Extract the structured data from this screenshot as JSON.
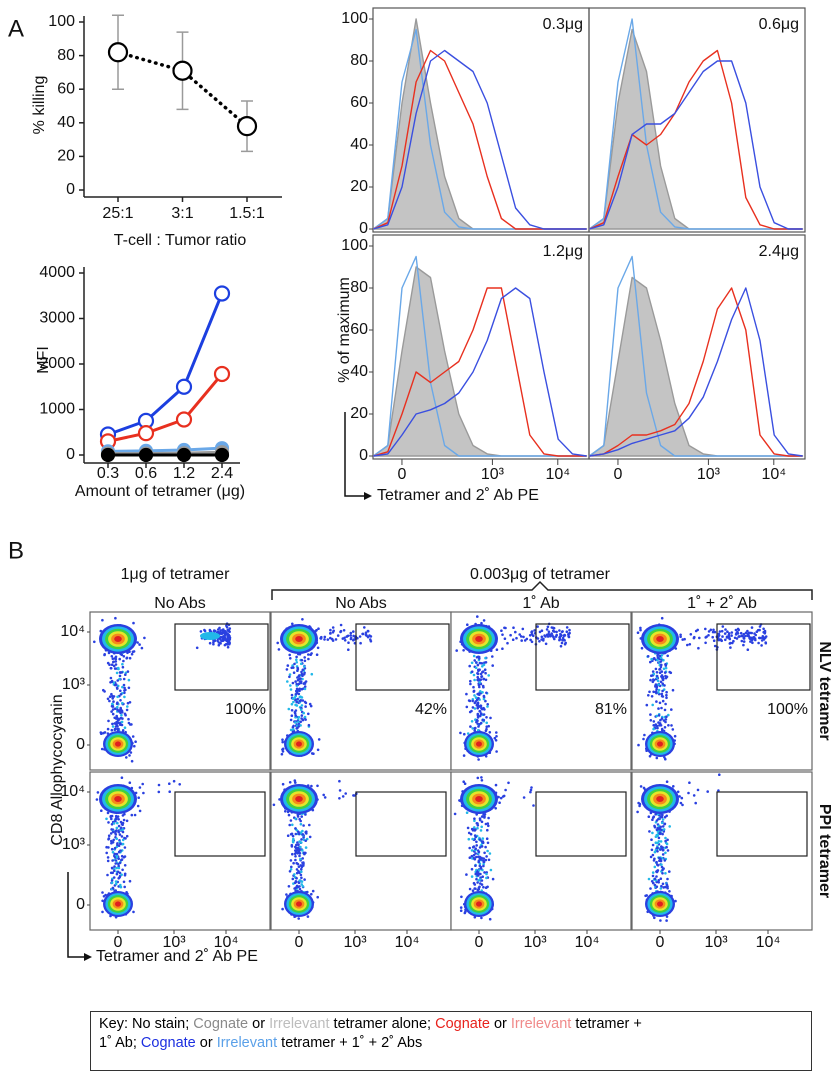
{
  "panel_labels": [
    "A",
    "B"
  ],
  "chart_data": [
    {
      "type": "line",
      "ylabel": "% killing",
      "xlabel": "T-cell : Tumor ratio",
      "categories": [
        "25:1",
        "3:1",
        "1.5:1"
      ],
      "values": [
        82,
        71,
        38
      ],
      "errors": [
        22,
        23,
        15
      ],
      "color": "#000000",
      "error_color": "#9a9a9a",
      "line_style": "dotted",
      "ylim": [
        0,
        100
      ],
      "yticks": [
        0,
        20,
        40,
        60,
        80,
        100
      ]
    },
    {
      "type": "line",
      "ylabel": "MFI",
      "xlabel": "Amount of tetramer (μg)",
      "categories": [
        "0.3",
        "0.6",
        "1.2",
        "2.4"
      ],
      "series": [
        {
          "color": "#1c3fe0",
          "values": [
            450,
            750,
            1500,
            3550
          ]
        },
        {
          "color": "#e8301f",
          "values": [
            300,
            480,
            780,
            1780
          ]
        },
        {
          "color": "#6aa8e8",
          "values": [
            80,
            90,
            110,
            150
          ],
          "filled": true
        },
        {
          "color": "#999999",
          "values": [
            30,
            30,
            40,
            60
          ],
          "filled": true
        },
        {
          "color": "#000000",
          "values": [
            0,
            0,
            0,
            0
          ],
          "filled": true
        }
      ],
      "ylim": [
        0,
        4000
      ],
      "yticks": [
        0,
        1000,
        2000,
        3000,
        4000
      ]
    },
    {
      "type": "density",
      "title": "0.3μg",
      "ylabel": "% of maximum",
      "xscale": "asinh",
      "x": [
        -98,
        -43,
        0,
        43,
        98,
        177,
        301,
        502,
        831,
        1371,
        2265,
        3733,
        6159,
        10154,
        16740,
        27600
      ],
      "xlim": [
        -100,
        30000
      ],
      "ylim": [
        0,
        100
      ],
      "yticks": [
        0,
        20,
        40,
        60,
        80,
        100
      ],
      "series": [
        {
          "color": "#9a9a9a",
          "fill": true,
          "values": [
            0,
            5,
            60,
            100,
            60,
            25,
            5,
            0,
            0,
            0,
            0,
            0,
            0,
            0,
            0,
            0
          ]
        },
        {
          "color": "#6aa8e8",
          "values": [
            0,
            5,
            70,
            95,
            40,
            8,
            1,
            0,
            0,
            0,
            0,
            0,
            0,
            0,
            0,
            0
          ]
        },
        {
          "color": "#e8301f",
          "values": [
            0,
            3,
            30,
            70,
            85,
            80,
            65,
            50,
            25,
            5,
            0,
            0,
            0,
            0,
            0,
            0
          ]
        },
        {
          "color": "#3a4fe0",
          "values": [
            0,
            2,
            20,
            55,
            80,
            85,
            80,
            75,
            60,
            35,
            10,
            2,
            0,
            0,
            0,
            0
          ]
        }
      ]
    },
    {
      "type": "density",
      "title": "0.6μg",
      "xscale": "asinh",
      "x": [
        -98,
        -43,
        0,
        43,
        98,
        177,
        301,
        502,
        831,
        1371,
        2265,
        3733,
        6159,
        10154,
        16740,
        27600
      ],
      "xlim": [
        -100,
        30000
      ],
      "ylim": [
        0,
        100
      ],
      "series": [
        {
          "color": "#9a9a9a",
          "fill": true,
          "values": [
            0,
            5,
            60,
            95,
            75,
            30,
            5,
            0,
            0,
            0,
            0,
            0,
            0,
            0,
            0,
            0
          ]
        },
        {
          "color": "#6aa8e8",
          "values": [
            0,
            5,
            70,
            100,
            40,
            8,
            1,
            0,
            0,
            0,
            0,
            0,
            0,
            0,
            0,
            0
          ]
        },
        {
          "color": "#e8301f",
          "values": [
            0,
            3,
            25,
            45,
            40,
            45,
            55,
            70,
            80,
            85,
            60,
            15,
            2,
            0,
            0,
            0
          ]
        },
        {
          "color": "#3a4fe0",
          "values": [
            0,
            2,
            20,
            45,
            50,
            50,
            55,
            65,
            75,
            80,
            80,
            60,
            20,
            3,
            0,
            0
          ]
        }
      ]
    },
    {
      "type": "density",
      "title": "1.2μg",
      "xlabel": "Tetramer and 2˚ Ab PE",
      "xscale": "asinh",
      "x": [
        -98,
        -43,
        0,
        43,
        98,
        177,
        301,
        502,
        831,
        1371,
        2265,
        3733,
        6159,
        10154,
        16740,
        27600
      ],
      "xlim": [
        -100,
        30000
      ],
      "ylim": [
        0,
        100
      ],
      "yticks": [
        0,
        20,
        40,
        60,
        80,
        100
      ],
      "xticks": [
        {
          "value": 0,
          "label": "0"
        },
        {
          "value": 1000,
          "label": "10³"
        },
        {
          "value": 10000,
          "label": "10⁴"
        }
      ],
      "series": [
        {
          "color": "#9a9a9a",
          "fill": true,
          "values": [
            0,
            5,
            50,
            90,
            85,
            50,
            20,
            5,
            1,
            0,
            0,
            0,
            0,
            0,
            0,
            0
          ]
        },
        {
          "color": "#6aa8e8",
          "values": [
            0,
            5,
            80,
            95,
            35,
            5,
            0,
            0,
            0,
            0,
            0,
            0,
            0,
            0,
            0,
            0
          ]
        },
        {
          "color": "#e8301f",
          "values": [
            0,
            2,
            20,
            40,
            35,
            40,
            45,
            60,
            80,
            80,
            45,
            10,
            1,
            0,
            0,
            0
          ]
        },
        {
          "color": "#3a4fe0",
          "values": [
            0,
            1,
            10,
            20,
            22,
            25,
            30,
            40,
            55,
            75,
            80,
            75,
            40,
            8,
            1,
            0
          ]
        }
      ]
    },
    {
      "type": "density",
      "title": "2.4μg",
      "xscale": "asinh",
      "x": [
        -98,
        -43,
        0,
        43,
        98,
        177,
        301,
        502,
        831,
        1371,
        2265,
        3733,
        6159,
        10154,
        16740,
        27600
      ],
      "xlim": [
        -100,
        30000
      ],
      "ylim": [
        0,
        100
      ],
      "xticks": [
        {
          "value": 0,
          "label": "0"
        },
        {
          "value": 1000,
          "label": "10³"
        },
        {
          "value": 10000,
          "label": "10⁴"
        }
      ],
      "series": [
        {
          "color": "#9a9a9a",
          "fill": true,
          "values": [
            0,
            5,
            45,
            85,
            80,
            55,
            25,
            5,
            1,
            0,
            0,
            0,
            0,
            0,
            0,
            0
          ]
        },
        {
          "color": "#6aa8e8",
          "values": [
            0,
            5,
            80,
            95,
            30,
            5,
            0,
            0,
            0,
            0,
            0,
            0,
            0,
            0,
            0,
            0
          ]
        },
        {
          "color": "#e8301f",
          "values": [
            0,
            1,
            5,
            10,
            10,
            12,
            15,
            25,
            45,
            70,
            80,
            60,
            10,
            1,
            0,
            0
          ]
        },
        {
          "color": "#3a4fe0",
          "values": [
            0,
            1,
            3,
            6,
            8,
            10,
            12,
            18,
            28,
            45,
            65,
            80,
            55,
            10,
            1,
            0
          ]
        }
      ]
    }
  ],
  "panel_b": {
    "group_headers": [
      "1μg of tetramer",
      "0.003μg of tetramer"
    ],
    "columns": [
      {
        "label": "No Abs",
        "color": "#8a8a8a"
      },
      {
        "label": "No Abs",
        "color": "#8a8a8a"
      },
      {
        "label": "1˚ Ab",
        "color": "#e8221c"
      },
      {
        "label": "1˚ + 2˚ Ab",
        "color": "#1c2fe0"
      }
    ],
    "rows": [
      "NLV tetramer",
      "PPI tetramer"
    ],
    "gate_percents": [
      "100%",
      "42%",
      "81%",
      "100%"
    ],
    "yticks": [
      "10⁴",
      "10³",
      "0"
    ],
    "xticks": [
      "0",
      "10³",
      "10⁴"
    ],
    "ylabel": "CD8 Allophycocyanin",
    "xlabel": "Tetramer and 2˚ Ab PE"
  },
  "key": {
    "lines": [
      [
        {
          "text": "Key: No stain; ",
          "color": "#000000"
        },
        {
          "text": "Cognate",
          "color": "#8a8a8a"
        },
        {
          "text": " or ",
          "color": "#000000"
        },
        {
          "text": "Irrelevant",
          "color": "#bdbdbd"
        },
        {
          "text": " tetramer alone; ",
          "color": "#000000"
        },
        {
          "text": "Cognate",
          "color": "#e8221c"
        },
        {
          "text": " or ",
          "color": "#000000"
        },
        {
          "text": "Irrelevant",
          "color": "#f08a8a"
        },
        {
          "text": " tetramer +",
          "color": "#000000"
        }
      ],
      [
        {
          "text": "1˚ Ab; ",
          "color": "#000000"
        },
        {
          "text": "Cognate",
          "color": "#1c2fe0"
        },
        {
          "text": " or ",
          "color": "#000000"
        },
        {
          "text": "Irrelevant",
          "color": "#5aa0e8"
        },
        {
          "text": " tetramer + 1˚ + 2˚ Abs",
          "color": "#000000"
        }
      ]
    ]
  }
}
